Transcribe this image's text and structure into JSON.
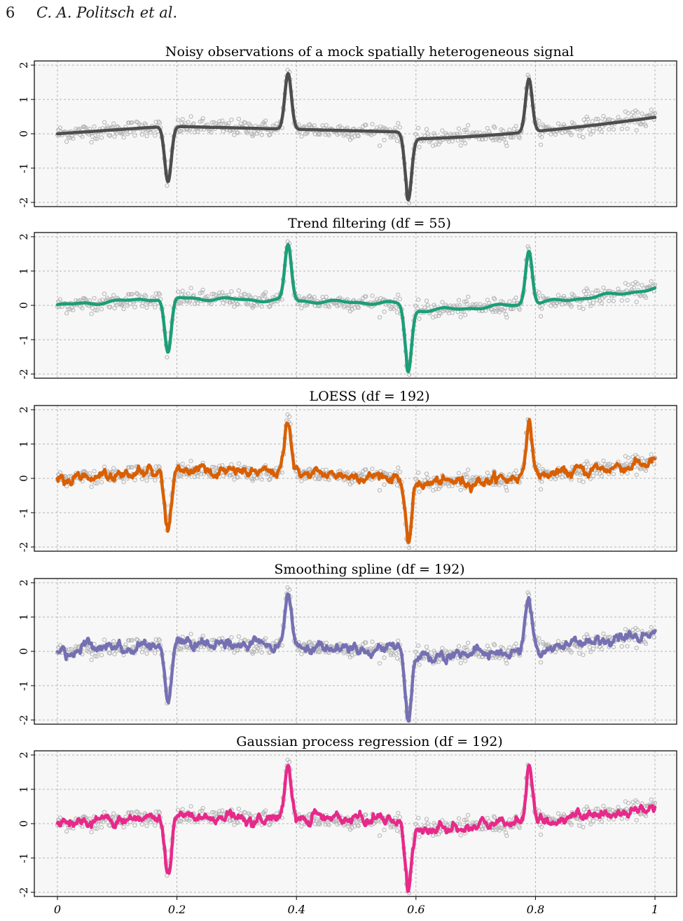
{
  "page": {
    "number": "6",
    "running_head": "C. A. Politsch et al."
  },
  "colors": {
    "panel_background": "#f7f7f7",
    "grid": "#b4b4b4",
    "observations": "#b4b4b4",
    "truth": "#4d4d4d",
    "trend_filtering": "#1b9e77",
    "loess": "#d95f02",
    "smoothing_spline": "#7570b3",
    "gaussian_process": "#e7298a"
  },
  "chart_data": [
    {
      "type": "line",
      "title": "Noisy observations of a mock spatially heterogeneous signal",
      "color_key": "truth",
      "method": "truth",
      "xlim": [
        0,
        1
      ],
      "ylim": [
        -2,
        2
      ],
      "y_ticks": [
        "2",
        "1",
        "0",
        "-1",
        "-2"
      ],
      "x_ticks": [],
      "grid": true
    },
    {
      "type": "line",
      "title": "Trend filtering (df = 55)",
      "color_key": "trend_filtering",
      "method": "trend",
      "xlim": [
        0,
        1
      ],
      "ylim": [
        -2,
        2
      ],
      "y_ticks": [
        "2",
        "1",
        "0",
        "-1",
        "-2"
      ],
      "x_ticks": [],
      "grid": true
    },
    {
      "type": "line",
      "title": "LOESS (df = 192)",
      "color_key": "loess",
      "method": "wiggly",
      "xlim": [
        0,
        1
      ],
      "ylim": [
        -2,
        2
      ],
      "y_ticks": [
        "2",
        "1",
        "0",
        "-1",
        "-2"
      ],
      "x_ticks": [],
      "grid": true
    },
    {
      "type": "line",
      "title": "Smoothing spline (df = 192)",
      "color_key": "smoothing_spline",
      "method": "wiggly",
      "xlim": [
        0,
        1
      ],
      "ylim": [
        -2,
        2
      ],
      "y_ticks": [
        "2",
        "1",
        "0",
        "-1",
        "-2"
      ],
      "x_ticks": [],
      "grid": true
    },
    {
      "type": "line",
      "title": "Gaussian process regression (df = 192)",
      "color_key": "gaussian_process",
      "method": "wiggly",
      "xlim": [
        0,
        1
      ],
      "ylim": [
        -2,
        2
      ],
      "y_ticks": [
        "2",
        "1",
        "0",
        "-1",
        "-2"
      ],
      "x_ticks": [
        "0",
        "0.2",
        "0.4",
        "0.6",
        "0.8",
        "1"
      ],
      "grid": true
    }
  ]
}
